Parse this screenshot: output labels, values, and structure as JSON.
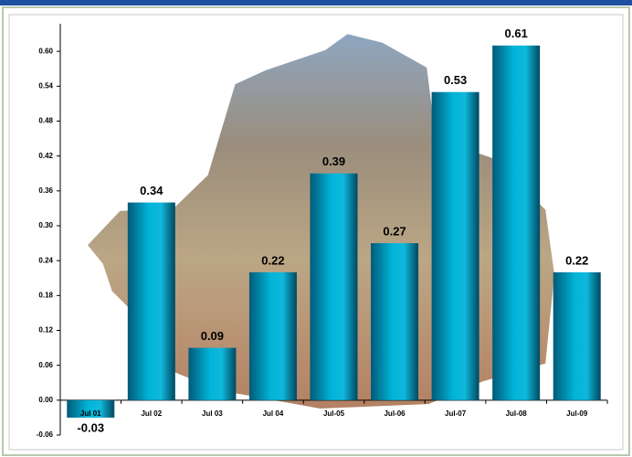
{
  "chart_data": {
    "type": "bar",
    "categories": [
      "Jul 01",
      "Jul 02",
      "Jul 03",
      "Jul 04",
      "Jul-05",
      "Jul-06",
      "Jul-07",
      "Jul-08",
      "Jul-09"
    ],
    "values": [
      -0.03,
      0.34,
      0.09,
      0.22,
      0.39,
      0.27,
      0.53,
      0.61,
      0.22
    ],
    "color": "#00a8c8",
    "ylim": [
      -0.06,
      0.66
    ],
    "yticks": [
      {
        "value": -0.06,
        "label": "-0.06"
      },
      {
        "value": 0,
        "label": "0.00"
      },
      0.06,
      0.12,
      0.18,
      0.24,
      {
        "value": 0.3,
        "label": "0.30"
      },
      0.36,
      0.42,
      0.48,
      0.54,
      {
        "value": 0.6,
        "label": "0.60"
      }
    ]
  }
}
